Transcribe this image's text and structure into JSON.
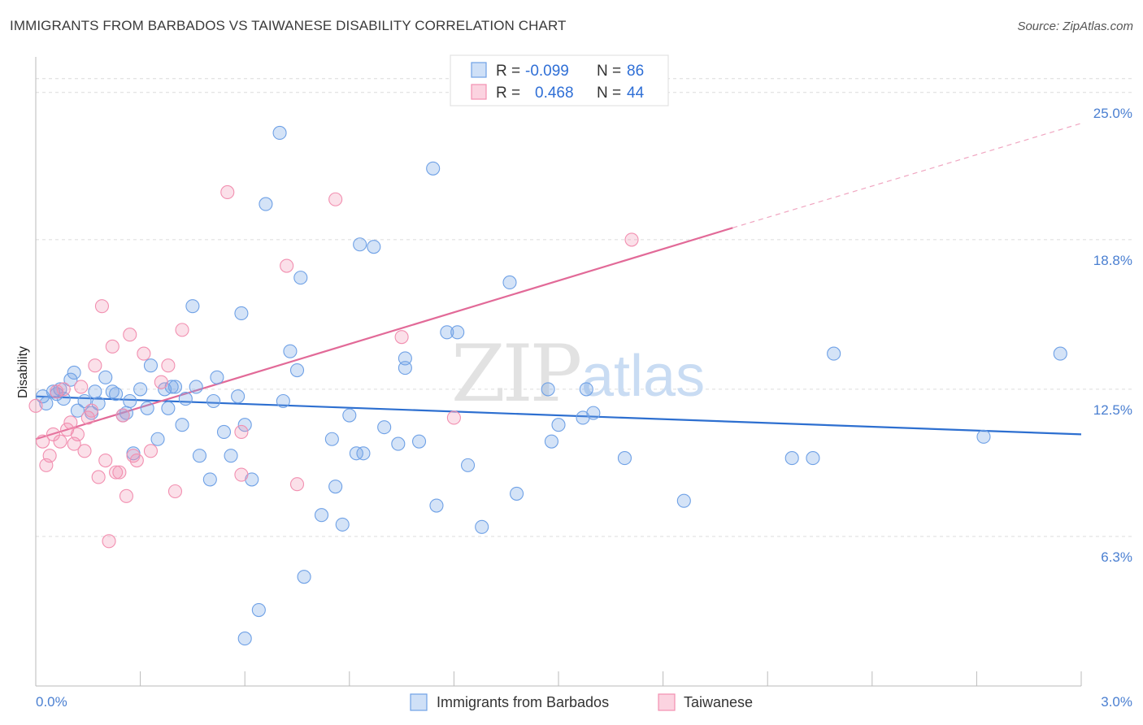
{
  "header": {
    "title": "IMMIGRANTS FROM BARBADOS VS TAIWANESE DISABILITY CORRELATION CHART",
    "source": "Source: ZipAtlas.com"
  },
  "legend": {
    "rows": [
      {
        "r_label": "R =",
        "r_value": "-0.099",
        "n_label": "N =",
        "n_value": "86",
        "color": "#6fa1e6"
      },
      {
        "r_label": "R =",
        "r_value": "0.468",
        "n_label": "N =",
        "n_value": "44",
        "color": "#f28fb0"
      }
    ]
  },
  "bottom_legend": [
    {
      "label": "Immigrants from Barbados",
      "color": "#6fa1e6"
    },
    {
      "label": "Taiwanese",
      "color": "#f28fb0"
    }
  ],
  "watermark": {
    "zip": "ZIP",
    "atlas": "atlas"
  },
  "chart_data": {
    "type": "scatter",
    "title": "IMMIGRANTS FROM BARBADOS VS TAIWANESE DISABILITY CORRELATION CHART",
    "xlabel": "",
    "ylabel": "Disability",
    "xlim": [
      0.0,
      3.0
    ],
    "ylim": [
      0.0,
      26.5
    ],
    "x_tick_labels": [
      {
        "value": 0.0,
        "label": "0.0%"
      },
      {
        "value": 3.0,
        "label": "3.0%"
      }
    ],
    "y_tick_labels": [
      {
        "value": 6.3,
        "label": "6.3%"
      },
      {
        "value": 12.5,
        "label": "12.5%"
      },
      {
        "value": 18.8,
        "label": "18.8%"
      },
      {
        "value": 25.0,
        "label": "25.0%"
      }
    ],
    "grid": true,
    "legend_position": "top-center",
    "series": [
      {
        "name": "Immigrants from Barbados",
        "color": "#6fa1e6",
        "trend": {
          "x0": 0.0,
          "y0": 12.2,
          "x1": 3.0,
          "y1": 10.6
        },
        "points": [
          [
            0.02,
            12.2
          ],
          [
            0.03,
            11.9
          ],
          [
            0.05,
            12.4
          ],
          [
            0.06,
            12.3
          ],
          [
            0.07,
            12.5
          ],
          [
            0.08,
            12.1
          ],
          [
            0.1,
            12.9
          ],
          [
            0.11,
            13.2
          ],
          [
            0.12,
            11.6
          ],
          [
            0.14,
            12.0
          ],
          [
            0.16,
            11.5
          ],
          [
            0.17,
            12.4
          ],
          [
            0.18,
            11.9
          ],
          [
            0.2,
            13.0
          ],
          [
            0.22,
            12.4
          ],
          [
            0.23,
            12.3
          ],
          [
            0.25,
            11.4
          ],
          [
            0.26,
            11.5
          ],
          [
            0.27,
            12.0
          ],
          [
            0.28,
            9.8
          ],
          [
            0.3,
            12.5
          ],
          [
            0.32,
            11.7
          ],
          [
            0.33,
            13.5
          ],
          [
            0.35,
            10.4
          ],
          [
            0.37,
            12.5
          ],
          [
            0.38,
            11.7
          ],
          [
            0.39,
            12.6
          ],
          [
            0.4,
            12.6
          ],
          [
            0.42,
            11.0
          ],
          [
            0.43,
            12.1
          ],
          [
            0.45,
            16.0
          ],
          [
            0.46,
            12.6
          ],
          [
            0.47,
            9.7
          ],
          [
            0.5,
            8.7
          ],
          [
            0.51,
            12.0
          ],
          [
            0.52,
            13.0
          ],
          [
            0.54,
            10.7
          ],
          [
            0.56,
            9.7
          ],
          [
            0.58,
            12.2
          ],
          [
            0.59,
            15.7
          ],
          [
            0.6,
            11.0
          ],
          [
            0.62,
            8.7
          ],
          [
            0.64,
            3.2
          ],
          [
            0.66,
            20.3
          ],
          [
            0.7,
            23.3
          ],
          [
            0.71,
            12.0
          ],
          [
            0.73,
            14.1
          ],
          [
            0.75,
            13.3
          ],
          [
            0.76,
            17.2
          ],
          [
            0.77,
            4.6
          ],
          [
            0.82,
            7.2
          ],
          [
            0.85,
            10.4
          ],
          [
            0.86,
            8.4
          ],
          [
            0.88,
            6.8
          ],
          [
            0.9,
            11.4
          ],
          [
            0.92,
            9.8
          ],
          [
            0.93,
            18.6
          ],
          [
            0.94,
            9.8
          ],
          [
            0.97,
            18.5
          ],
          [
            1.0,
            10.9
          ],
          [
            1.04,
            10.2
          ],
          [
            1.06,
            13.4
          ],
          [
            1.06,
            13.8
          ],
          [
            1.1,
            10.3
          ],
          [
            1.14,
            21.8
          ],
          [
            1.15,
            7.6
          ],
          [
            1.18,
            14.9
          ],
          [
            1.21,
            14.9
          ],
          [
            1.24,
            9.3
          ],
          [
            1.28,
            6.7
          ],
          [
            1.36,
            17.0
          ],
          [
            1.38,
            8.1
          ],
          [
            1.47,
            12.5
          ],
          [
            1.48,
            10.3
          ],
          [
            1.5,
            11.0
          ],
          [
            1.57,
            11.3
          ],
          [
            1.58,
            12.5
          ],
          [
            1.6,
            11.5
          ],
          [
            1.69,
            9.6
          ],
          [
            1.86,
            7.8
          ],
          [
            2.17,
            9.6
          ],
          [
            2.23,
            9.6
          ],
          [
            2.29,
            14.0
          ],
          [
            2.72,
            10.5
          ],
          [
            2.94,
            14.0
          ],
          [
            0.6,
            2.0
          ]
        ]
      },
      {
        "name": "Taiwanese",
        "color": "#f28fb0",
        "trend": {
          "x0": 0.0,
          "y0": 10.4,
          "x1": 2.0,
          "y1": 19.3
        },
        "trend_extension": {
          "x1": 3.0,
          "y1": 23.7
        },
        "points": [
          [
            0.0,
            11.8
          ],
          [
            0.02,
            10.3
          ],
          [
            0.03,
            9.3
          ],
          [
            0.04,
            9.7
          ],
          [
            0.05,
            10.6
          ],
          [
            0.06,
            12.4
          ],
          [
            0.07,
            10.3
          ],
          [
            0.08,
            12.5
          ],
          [
            0.09,
            10.8
          ],
          [
            0.1,
            11.1
          ],
          [
            0.11,
            10.2
          ],
          [
            0.12,
            10.6
          ],
          [
            0.13,
            12.6
          ],
          [
            0.14,
            9.9
          ],
          [
            0.15,
            11.3
          ],
          [
            0.16,
            11.6
          ],
          [
            0.17,
            13.5
          ],
          [
            0.18,
            8.8
          ],
          [
            0.19,
            16.0
          ],
          [
            0.2,
            9.5
          ],
          [
            0.21,
            6.1
          ],
          [
            0.22,
            14.3
          ],
          [
            0.23,
            9.0
          ],
          [
            0.24,
            9.0
          ],
          [
            0.25,
            11.4
          ],
          [
            0.26,
            8.0
          ],
          [
            0.27,
            14.8
          ],
          [
            0.28,
            9.7
          ],
          [
            0.29,
            9.5
          ],
          [
            0.31,
            14.0
          ],
          [
            0.33,
            9.9
          ],
          [
            0.36,
            12.8
          ],
          [
            0.38,
            13.5
          ],
          [
            0.4,
            8.2
          ],
          [
            0.42,
            15.0
          ],
          [
            0.55,
            20.8
          ],
          [
            0.59,
            10.7
          ],
          [
            0.59,
            8.9
          ],
          [
            0.72,
            17.7
          ],
          [
            0.75,
            8.5
          ],
          [
            0.86,
            20.5
          ],
          [
            1.05,
            14.7
          ],
          [
            1.2,
            11.3
          ],
          [
            1.71,
            18.8
          ]
        ]
      }
    ]
  }
}
